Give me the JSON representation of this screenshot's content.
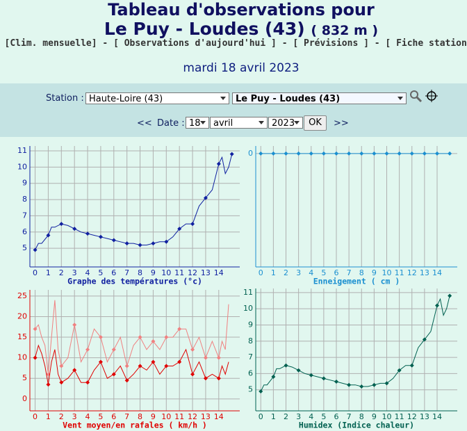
{
  "header": {
    "title_line1": "Tableau d'observations pour",
    "title_line2": "Le Puy - Loudes (43)",
    "altitude": "( 832 m )",
    "links": [
      "[Clim. mensuelle]",
      "[ Observations d'aujourd'hui ]",
      "[ Prévisions ]",
      "[ Fiche station ]"
    ],
    "separator": "-",
    "date": "mardi 18 avril 2023"
  },
  "form": {
    "station_label": "Station :",
    "region": "Haute-Loire (43)",
    "station": "Le Puy - Loudes (43)",
    "prev": "<<",
    "date_label": "Date :",
    "day": "18",
    "month": "avril",
    "year": "2023",
    "ok": "OK",
    "next": ">>"
  },
  "chart_data": [
    {
      "type": "line",
      "xlabel": "Graphe des températures (°c)",
      "xlim": [
        -0.4,
        15.6
      ],
      "ylim": [
        3.85,
        11.3
      ],
      "xticks": [
        0,
        1,
        2,
        3,
        4,
        5,
        6,
        7,
        8,
        9,
        10,
        11,
        12,
        13,
        14
      ],
      "yticks": [
        5,
        6,
        7,
        8,
        9,
        10,
        11
      ],
      "grid": true,
      "x": [
        0,
        0.25,
        0.5,
        1,
        1.25,
        1.5,
        2,
        2.5,
        3,
        3.5,
        4,
        4.5,
        5,
        5.5,
        6,
        6.5,
        7,
        7.5,
        8,
        8.5,
        9,
        9.5,
        10,
        10.5,
        11,
        11.5,
        12,
        12.5,
        13,
        13.5,
        14,
        14.25,
        14.5,
        14.75,
        15
      ],
      "series": [
        {
          "color": "#1020a0",
          "values": [
            4.9,
            5.3,
            5.3,
            5.8,
            6.3,
            6.3,
            6.5,
            6.4,
            6.2,
            6.0,
            5.9,
            5.8,
            5.7,
            5.6,
            5.5,
            5.4,
            5.3,
            5.3,
            5.2,
            5.2,
            5.3,
            5.4,
            5.4,
            5.7,
            6.2,
            6.5,
            6.5,
            7.6,
            8.1,
            8.6,
            10.2,
            10.6,
            9.6,
            10.0,
            10.8
          ]
        }
      ]
    },
    {
      "type": "line",
      "xlabel": "Enneigement ( cm )",
      "xlim": [
        -0.4,
        15.6
      ],
      "ylim": [
        -15,
        1
      ],
      "xticks": [
        0,
        1,
        2,
        3,
        4,
        5,
        6,
        7,
        8,
        9,
        10,
        11,
        12,
        13,
        14
      ],
      "yticks": [
        0
      ],
      "grid": true,
      "x": [
        0,
        1,
        2,
        3,
        4,
        5,
        6,
        7,
        8,
        9,
        10,
        11,
        12,
        13,
        14,
        15
      ],
      "series": [
        {
          "color": "#1a8fd0",
          "values": [
            0,
            0,
            0,
            0,
            0,
            0,
            0,
            0,
            0,
            0,
            0,
            0,
            0,
            0,
            0,
            0
          ]
        }
      ]
    },
    {
      "type": "line",
      "xlabel": "Vent moyen/en rafales ( km/h )",
      "xlim": [
        -0.4,
        15.6
      ],
      "ylim": [
        -2.9,
        26.5
      ],
      "xticks": [
        0,
        1,
        2,
        3,
        4,
        5,
        6,
        7,
        8,
        9,
        10,
        11,
        12,
        13,
        14
      ],
      "yticks": [
        0,
        5,
        10,
        15,
        20,
        25
      ],
      "grid": true,
      "x": [
        0,
        0.25,
        0.5,
        0.75,
        1,
        1.25,
        1.5,
        1.75,
        2,
        2.5,
        3,
        3.5,
        4,
        4.5,
        5,
        5.5,
        6,
        6.5,
        7,
        7.5,
        8,
        8.5,
        9,
        9.5,
        10,
        10.5,
        11,
        11.5,
        12,
        12.5,
        13,
        13.5,
        14,
        14.25,
        14.5,
        14.75
      ],
      "series": [
        {
          "color": "#f08080",
          "values": [
            17,
            18,
            15,
            13,
            6,
            15,
            24,
            12,
            8,
            10,
            18,
            9,
            12,
            17,
            15,
            9,
            12,
            15,
            8,
            13,
            15,
            12,
            14,
            12,
            15,
            15,
            17,
            17,
            12,
            15,
            10,
            14,
            10,
            14,
            12,
            23
          ]
        },
        {
          "color": "#e00000",
          "values": [
            10,
            13,
            11,
            8,
            3.5,
            9,
            12,
            6,
            4,
            5,
            7,
            4,
            4,
            7,
            9,
            5,
            6,
            8,
            4.5,
            6,
            8,
            7,
            9,
            6,
            8,
            8,
            9,
            12,
            6,
            9,
            5,
            6,
            5,
            8,
            6,
            9
          ]
        }
      ]
    },
    {
      "type": "line",
      "xlabel": "Humidex (Indice chaleur)",
      "xlim": [
        -0.4,
        15.6
      ],
      "ylim": [
        3.7,
        11.25
      ],
      "xticks": [
        0,
        1,
        2,
        3,
        4,
        5,
        6,
        7,
        8,
        9,
        10,
        11,
        12,
        13,
        14
      ],
      "yticks": [
        5,
        6,
        7,
        8,
        9,
        10,
        11
      ],
      "grid": true,
      "x": [
        0,
        0.25,
        0.5,
        1,
        1.25,
        1.5,
        2,
        2.5,
        3,
        3.5,
        4,
        4.5,
        5,
        5.5,
        6,
        6.5,
        7,
        7.5,
        8,
        8.5,
        9,
        9.5,
        10,
        10.5,
        11,
        11.5,
        12,
        12.5,
        13,
        13.5,
        14,
        14.25,
        14.5,
        14.75,
        15
      ],
      "series": [
        {
          "color": "#006050",
          "values": [
            4.9,
            5.3,
            5.3,
            5.8,
            6.3,
            6.3,
            6.5,
            6.4,
            6.2,
            6.0,
            5.9,
            5.8,
            5.7,
            5.6,
            5.5,
            5.4,
            5.3,
            5.3,
            5.2,
            5.2,
            5.3,
            5.4,
            5.4,
            5.7,
            6.2,
            6.5,
            6.5,
            7.6,
            8.1,
            8.6,
            10.2,
            10.6,
            9.6,
            10.0,
            10.8
          ]
        }
      ]
    }
  ]
}
